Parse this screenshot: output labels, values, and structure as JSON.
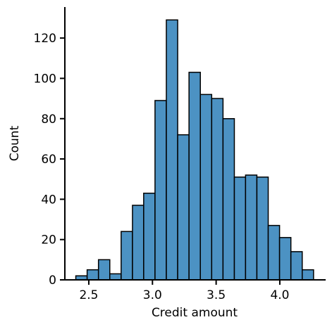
{
  "chart_data": {
    "type": "histogram",
    "xlabel": "Credit amount",
    "ylabel": "Count",
    "bins": [
      2.398,
      2.487,
      2.576,
      2.665,
      2.754,
      2.843,
      2.931,
      3.02,
      3.109,
      3.198,
      3.287,
      3.376,
      3.465,
      3.554,
      3.643,
      3.731,
      3.82,
      3.909,
      3.998,
      4.087,
      4.176,
      4.265
    ],
    "counts": [
      2,
      5,
      10,
      3,
      24,
      37,
      43,
      89,
      129,
      72,
      103,
      92,
      90,
      80,
      51,
      52,
      51,
      27,
      21,
      14,
      5
    ],
    "color": "#4c92c3",
    "edgecolor": "#000000",
    "xlim": [
      2.312,
      4.36
    ],
    "ylim": [
      0,
      135.4
    ],
    "xticks": [
      2.5,
      {
        "value": 3,
        "label": "3.0"
      },
      3.5,
      {
        "value": 4,
        "label": "4.0"
      }
    ],
    "yticks": [
      0,
      20,
      40,
      60,
      80,
      100,
      120
    ],
    "grid": false
  }
}
